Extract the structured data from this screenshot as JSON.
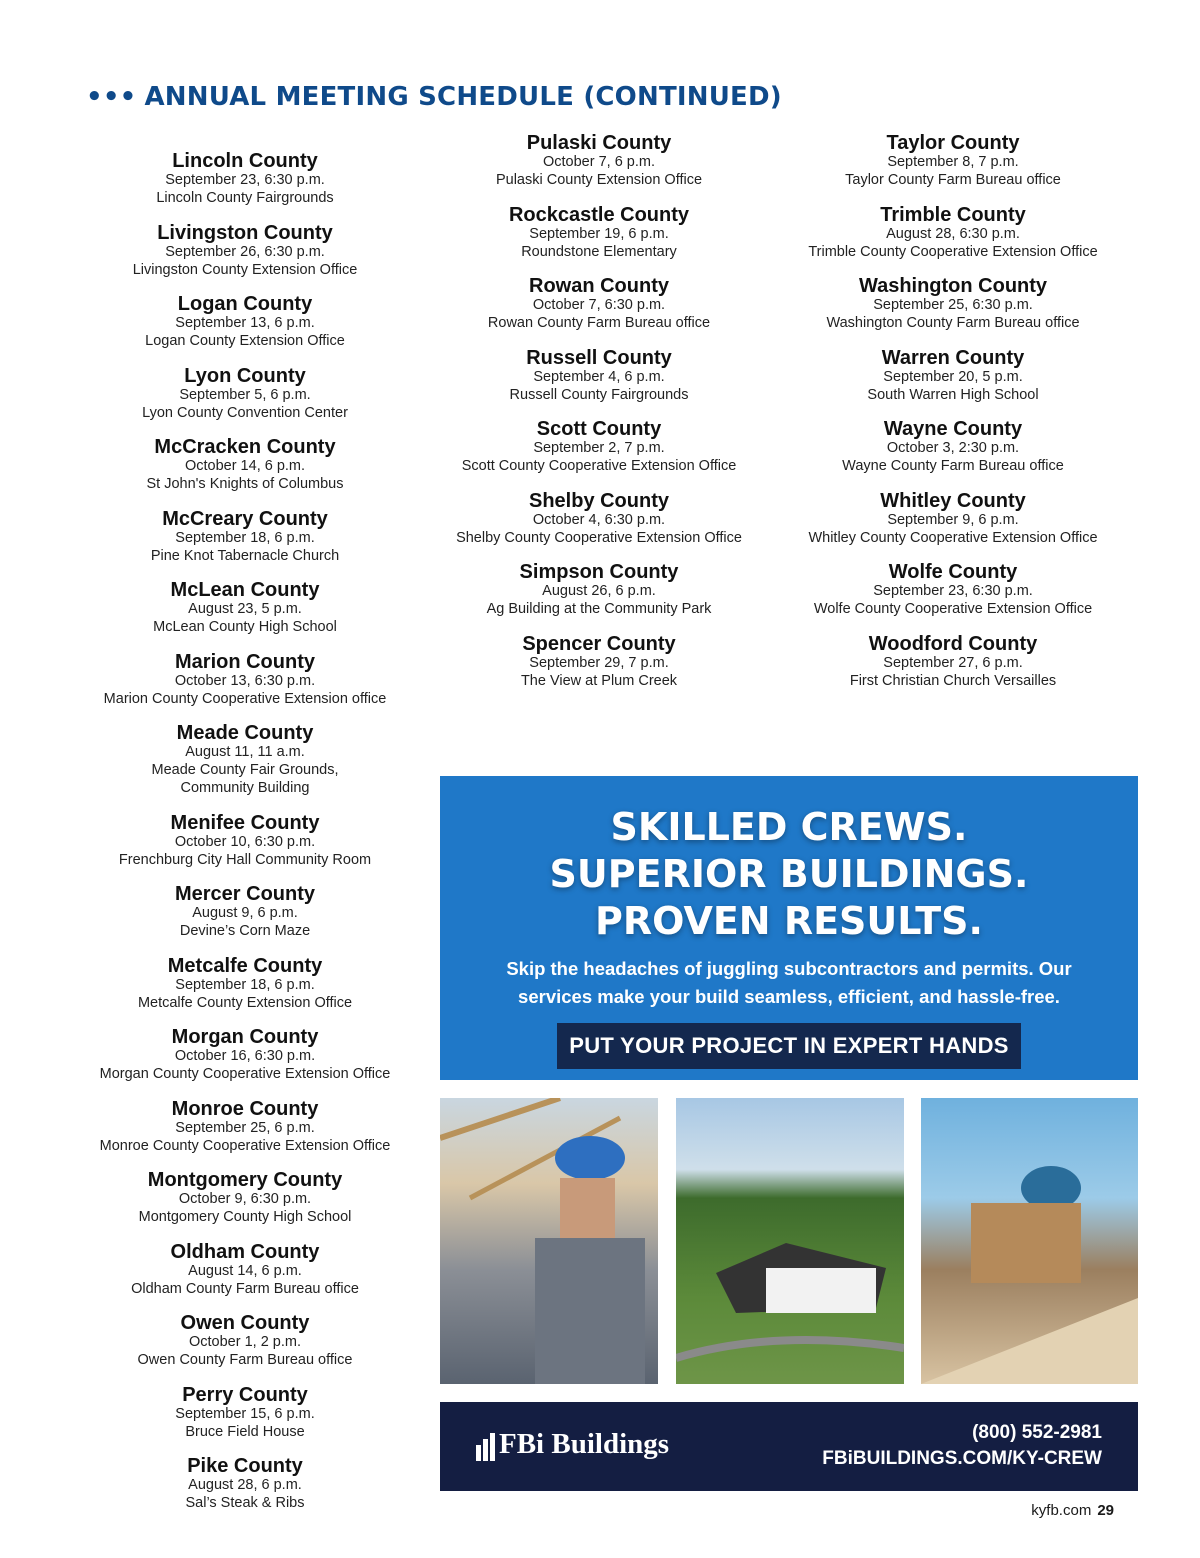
{
  "header": {
    "dots": "•••",
    "title": "ANNUAL MEETING SCHEDULE (CONTINUED)"
  },
  "columns": [
    [
      {
        "county": "Lincoln County",
        "lines": [
          "September 23, 6:30 p.m.",
          "Lincoln County Fairgrounds"
        ]
      },
      {
        "county": "Livingston County",
        "lines": [
          "September 26, 6:30 p.m.",
          "Livingston County Extension Office"
        ]
      },
      {
        "county": "Logan County",
        "lines": [
          "September 13, 6 p.m.",
          "Logan County Extension Office"
        ]
      },
      {
        "county": "Lyon County",
        "lines": [
          "September 5, 6 p.m.",
          "Lyon County Convention Center"
        ]
      },
      {
        "county": "McCracken County",
        "lines": [
          "October 14, 6 p.m.",
          "St John's Knights of Columbus"
        ]
      },
      {
        "county": "McCreary County",
        "lines": [
          "September 18, 6 p.m.",
          "Pine Knot Tabernacle Church"
        ]
      },
      {
        "county": "McLean County",
        "lines": [
          "August 23, 5 p.m.",
          "McLean County High School"
        ]
      },
      {
        "county": "Marion County",
        "lines": [
          "October 13, 6:30 p.m.",
          "Marion County Cooperative Extension office"
        ]
      },
      {
        "county": "Meade County",
        "lines": [
          "August 11, 11 a.m.",
          "Meade County Fair Grounds,",
          "Community Building"
        ]
      },
      {
        "county": "Menifee County",
        "lines": [
          "October 10, 6:30 p.m.",
          "Frenchburg City Hall Community Room"
        ]
      },
      {
        "county": "Mercer County",
        "lines": [
          "August 9, 6 p.m.",
          "Devine’s Corn Maze"
        ]
      },
      {
        "county": "Metcalfe County",
        "lines": [
          "September 18, 6 p.m.",
          "Metcalfe County Extension Office"
        ]
      },
      {
        "county": "Morgan County",
        "lines": [
          "October 16, 6:30 p.m.",
          "Morgan County Cooperative Extension Office"
        ]
      },
      {
        "county": "Monroe County",
        "lines": [
          "September 25, 6 p.m.",
          "Monroe County Cooperative Extension Office"
        ]
      },
      {
        "county": "Montgomery County",
        "lines": [
          "October 9, 6:30 p.m.",
          "Montgomery County High School"
        ]
      },
      {
        "county": "Oldham County",
        "lines": [
          "August 14, 6 p.m.",
          "Oldham County Farm Bureau office"
        ]
      },
      {
        "county": "Owen County",
        "lines": [
          "October 1, 2 p.m.",
          "Owen County Farm Bureau office"
        ]
      },
      {
        "county": "Perry County",
        "lines": [
          "September 15, 6 p.m.",
          "Bruce Field House"
        ]
      },
      {
        "county": "Pike County",
        "lines": [
          "August 28, 6 p.m.",
          "Sal’s Steak & Ribs"
        ]
      }
    ],
    [
      {
        "county": "Pulaski County",
        "lines": [
          "October 7, 6 p.m.",
          "Pulaski County Extension Office"
        ]
      },
      {
        "county": "Rockcastle County",
        "lines": [
          "September 19, 6 p.m.",
          "Roundstone Elementary"
        ]
      },
      {
        "county": "Rowan County",
        "lines": [
          "October 7, 6:30 p.m.",
          "Rowan County Farm Bureau office"
        ]
      },
      {
        "county": "Russell County",
        "lines": [
          "September 4, 6 p.m.",
          "Russell County Fairgrounds"
        ]
      },
      {
        "county": "Scott County",
        "lines": [
          "September 2, 7 p.m.",
          "Scott County Cooperative Extension Office"
        ]
      },
      {
        "county": "Shelby County",
        "lines": [
          "October 4, 6:30 p.m.",
          "Shelby County Cooperative Extension Office"
        ]
      },
      {
        "county": "Simpson County",
        "lines": [
          "August 26, 6 p.m.",
          "Ag Building at the Community Park"
        ]
      },
      {
        "county": "Spencer County",
        "lines": [
          "September 29, 7 p.m.",
          "The View at Plum Creek"
        ]
      }
    ],
    [
      {
        "county": "Taylor County",
        "lines": [
          "September 8, 7 p.m.",
          "Taylor County Farm Bureau office"
        ]
      },
      {
        "county": "Trimble County",
        "lines": [
          "August 28, 6:30 p.m.",
          "Trimble County Cooperative Extension Office"
        ]
      },
      {
        "county": "Washington County",
        "lines": [
          "September 25, 6:30 p.m.",
          "Washington County Farm Bureau office"
        ]
      },
      {
        "county": "Warren County",
        "lines": [
          "September 20, 5 p.m.",
          "South Warren High School"
        ]
      },
      {
        "county": "Wayne County",
        "lines": [
          "October 3, 2:30 p.m.",
          "Wayne County Farm Bureau office"
        ]
      },
      {
        "county": "Whitley County",
        "lines": [
          "September 9, 6 p.m.",
          "Whitley County Cooperative Extension Office"
        ]
      },
      {
        "county": "Wolfe County",
        "lines": [
          "September 23, 6:30 p.m.",
          "Wolfe County Cooperative Extension Office"
        ]
      },
      {
        "county": "Woodford County",
        "lines": [
          "September 27, 6 p.m.",
          "First Christian Church Versailles"
        ]
      }
    ]
  ],
  "ad": {
    "headline": [
      "SKILLED CREWS.",
      "SUPERIOR BUILDINGS.",
      "PROVEN RESULTS."
    ],
    "body": [
      "Skip the headaches of juggling subcontractors and permits. Our",
      "services make your build seamless, efficient, and hassle-free."
    ],
    "cta": "PUT YOUR PROJECT IN EXPERT HANDS",
    "brand": "FBi Buildings",
    "phone": "(800) 552-2981",
    "url": "FBiBUILDINGS.COM/KY-CREW",
    "colors": {
      "blue": "#1f78c8",
      "navy": "#141e42",
      "cta": "#14284e"
    }
  },
  "footer": {
    "site": "kyfb.com",
    "page": "29"
  }
}
